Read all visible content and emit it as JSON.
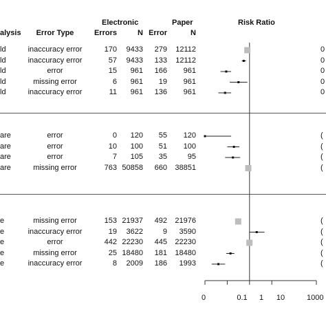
{
  "headers": {
    "analysis": "alysis",
    "error_type": "Error Type",
    "electronic": "Electronic",
    "paper": "Paper",
    "errors": "Errors",
    "n_e": "N",
    "error": "Error",
    "n_p": "N",
    "risk_ratio": "Risk Ratio"
  },
  "chart_data": {
    "type": "forest",
    "title": "Risk Ratio",
    "x_scale": "log",
    "xlim": [
      0.01,
      1000
    ],
    "x_ticks": [
      "0",
      "0.1",
      "1",
      "10",
      "1000"
    ],
    "reference_line": 1,
    "groups": [
      {
        "rows": [
          {
            "analysis": "ld",
            "error_type": "inaccuracy error",
            "e_errors": "170",
            "e_n": "9433",
            "p_errors": "279",
            "p_n": "12112",
            "rr": 0.8,
            "lo": 0.8,
            "hi": 0.8,
            "marker": "square",
            "right": "0"
          },
          {
            "analysis": "ld",
            "error_type": "inaccuracy error",
            "e_errors": "57",
            "e_n": "9433",
            "p_errors": "133",
            "p_n": "12112",
            "rr": 0.55,
            "lo": 0.45,
            "hi": 0.7,
            "marker": "point",
            "right": "0"
          },
          {
            "analysis": "ld",
            "error_type": "error",
            "e_errors": "15",
            "e_n": "961",
            "p_errors": "166",
            "p_n": "961",
            "rr": 0.09,
            "lo": 0.05,
            "hi": 0.15,
            "marker": "point",
            "right": "0"
          },
          {
            "analysis": "ld",
            "error_type": "missing error",
            "e_errors": "6",
            "e_n": "961",
            "p_errors": "19",
            "p_n": "961",
            "rr": 0.32,
            "lo": 0.13,
            "hi": 0.8,
            "marker": "point",
            "right": "0"
          },
          {
            "analysis": "ld",
            "error_type": "inaccuracy error",
            "e_errors": "11",
            "e_n": "961",
            "p_errors": "136",
            "p_n": "961",
            "rr": 0.08,
            "lo": 0.04,
            "hi": 0.15,
            "marker": "point",
            "right": "0"
          }
        ]
      },
      {
        "rows": [
          {
            "analysis": "are",
            "error_type": "error",
            "e_errors": "0",
            "e_n": "120",
            "p_errors": "55",
            "p_n": "120",
            "rr": 0.009,
            "lo": 0.0015,
            "hi": 0.15,
            "marker": "point",
            "right": "("
          },
          {
            "analysis": "are",
            "error_type": "error",
            "e_errors": "10",
            "e_n": "100",
            "p_errors": "51",
            "p_n": "100",
            "rr": 0.2,
            "lo": 0.1,
            "hi": 0.35,
            "marker": "point",
            "right": "("
          },
          {
            "analysis": "are",
            "error_type": "error",
            "e_errors": "7",
            "e_n": "105",
            "p_errors": "35",
            "p_n": "95",
            "rr": 0.18,
            "lo": 0.08,
            "hi": 0.38,
            "marker": "point",
            "right": "("
          },
          {
            "analysis": "are",
            "error_type": "missing error",
            "e_errors": "763",
            "e_n": "50858",
            "p_errors": "660",
            "p_n": "38851",
            "rr": 0.88,
            "lo": 0.88,
            "hi": 0.88,
            "marker": "square",
            "right": "("
          }
        ]
      },
      {
        "rows": [
          {
            "analysis": "e",
            "error_type": "missing error",
            "e_errors": "153",
            "e_n": "21937",
            "p_errors": "492",
            "p_n": "21976",
            "rr": 0.31,
            "lo": 0.31,
            "hi": 0.31,
            "marker": "square",
            "right": "("
          },
          {
            "analysis": "e",
            "error_type": "inaccuracy error",
            "e_errors": "19",
            "e_n": "3622",
            "p_errors": "9",
            "p_n": "3590",
            "rr": 2.1,
            "lo": 1.0,
            "hi": 4.7,
            "marker": "point",
            "right": "("
          },
          {
            "analysis": "e",
            "error_type": "error",
            "e_errors": "442",
            "e_n": "22230",
            "p_errors": "445",
            "p_n": "22230",
            "rr": 0.99,
            "lo": 0.99,
            "hi": 0.99,
            "marker": "square",
            "right": "("
          },
          {
            "analysis": "e",
            "error_type": "missing error",
            "e_errors": "25",
            "e_n": "18480",
            "p_errors": "181",
            "p_n": "18480",
            "rr": 0.14,
            "lo": 0.09,
            "hi": 0.21,
            "marker": "point",
            "right": "("
          },
          {
            "analysis": "e",
            "error_type": "inaccuracy error",
            "e_errors": "8",
            "e_n": "2009",
            "p_errors": "186",
            "p_n": "1993",
            "rr": 0.04,
            "lo": 0.02,
            "hi": 0.08,
            "marker": "point",
            "right": "("
          }
        ]
      }
    ]
  }
}
